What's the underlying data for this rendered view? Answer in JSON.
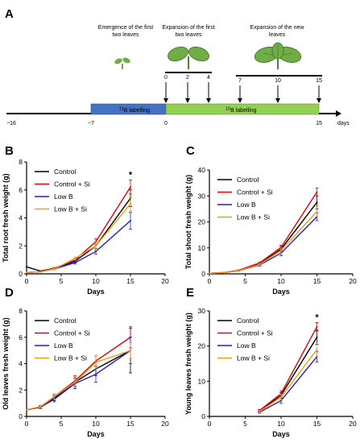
{
  "figure": {
    "panel_a": {
      "letter": "A",
      "stage_labels": [
        "Emergence of the first two leaves",
        "Expansion of the first two leaves",
        "Expansion of the new leaves"
      ],
      "stage_label_lines": [
        [
          "Emergence of the first",
          "two leaves"
        ],
        [
          "Expansion of the first",
          "two leaves"
        ],
        [
          "Expansion of the new",
          "leaves"
        ]
      ],
      "arrow_days": [
        "0",
        "2",
        "4",
        "7",
        "10",
        "15"
      ],
      "timeline_ticks": [
        "−16",
        "−7",
        "0",
        "15"
      ],
      "timeline_unit": "days",
      "label_11b_sup": "11",
      "label_11b_rest": "B labelling",
      "label_10b_sup": "10",
      "label_10b_rest": "B labelling",
      "colors": {
        "b11": "#4472c4",
        "b10": "#92d050",
        "leaf": "#70ad47",
        "leaf_dark": "#548235"
      }
    }
  },
  "legend_labels": [
    "Control",
    "Control + Si",
    "Low B",
    "Low B + Si"
  ],
  "series_colors": {
    "Control": "#000000",
    "Control + Si": "#e8000b",
    "Low B": "#1f1fd6",
    "Low B + Si": "#f39c12"
  },
  "chart_data": [
    {
      "panel": "B",
      "type": "line",
      "xlabel": "Days",
      "ylabel": "Total root fresh weight (g)",
      "xlim": [
        0,
        20
      ],
      "ylim": [
        0,
        8
      ],
      "xticks": [
        0,
        5,
        10,
        15,
        20
      ],
      "yticks": [
        0,
        2,
        4,
        6,
        8
      ],
      "annotation": "*",
      "annotation_x": 15,
      "series": [
        {
          "name": "Control",
          "x": [
            0,
            2,
            4,
            7,
            10,
            15
          ],
          "y": [
            0.5,
            0.2,
            0.4,
            0.9,
            2.0,
            5.4
          ],
          "err": [
            0,
            0,
            0.05,
            0.1,
            0.3,
            0.6
          ]
        },
        {
          "name": "Control + Si",
          "x": [
            0,
            2,
            4,
            7,
            10,
            15
          ],
          "y": [
            0.1,
            0.15,
            0.4,
            1.0,
            2.3,
            6.2
          ],
          "err": [
            0,
            0,
            0.05,
            0.1,
            0.2,
            0.5
          ]
        },
        {
          "name": "Low B",
          "x": [
            0,
            2,
            4,
            7,
            10,
            15
          ],
          "y": [
            0.1,
            0.15,
            0.35,
            0.8,
            1.6,
            3.8
          ],
          "err": [
            0,
            0,
            0.05,
            0.1,
            0.2,
            0.6
          ]
        },
        {
          "name": "Low B + Si",
          "x": [
            0,
            2,
            4,
            7,
            10,
            15
          ],
          "y": [
            0.1,
            0.15,
            0.35,
            1.1,
            2.0,
            5.0
          ],
          "err": [
            0,
            0,
            0.05,
            0.1,
            0.3,
            0.5
          ]
        }
      ]
    },
    {
      "panel": "C",
      "type": "line",
      "xlabel": "Days",
      "ylabel": "Total shoot fresh weight (g)",
      "xlim": [
        0,
        20
      ],
      "ylim": [
        0,
        40
      ],
      "xticks": [
        0,
        5,
        10,
        15,
        20
      ],
      "yticks": [
        0,
        10,
        20,
        30,
        40
      ],
      "series": [
        {
          "name": "Control",
          "x": [
            0,
            2,
            4,
            7,
            10,
            15
          ],
          "y": [
            0.2,
            0.5,
            1.2,
            3.8,
            9.5,
            27.5
          ],
          "err": [
            0,
            0,
            0.2,
            0.4,
            1.0,
            2.5
          ]
        },
        {
          "name": "Control + Si",
          "x": [
            0,
            2,
            4,
            7,
            10,
            15
          ],
          "y": [
            0.2,
            0.5,
            1.3,
            4.2,
            10.2,
            31.5
          ],
          "err": [
            0,
            0,
            0.2,
            0.4,
            0.8,
            1.5
          ]
        },
        {
          "name": "Low B",
          "x": [
            0,
            2,
            4,
            7,
            10,
            15
          ],
          "y": [
            0.2,
            0.5,
            1.1,
            3.4,
            8.0,
            22.0
          ],
          "err": [
            0,
            0,
            0.2,
            0.4,
            1.0,
            1.5
          ]
        },
        {
          "name": "Low B + Si",
          "x": [
            0,
            2,
            4,
            7,
            10,
            15
          ],
          "y": [
            0.2,
            0.5,
            1.1,
            3.6,
            9.0,
            24.0
          ],
          "err": [
            0,
            0,
            0.2,
            0.4,
            1.0,
            2.0
          ]
        }
      ]
    },
    {
      "panel": "D",
      "type": "line",
      "xlabel": "Days",
      "ylabel": "Old leaves fresh weight (g)",
      "xlim": [
        0,
        20
      ],
      "ylim": [
        0,
        8
      ],
      "xticks": [
        0,
        5,
        10,
        15,
        20
      ],
      "yticks": [
        0,
        2,
        4,
        6,
        8
      ],
      "series": [
        {
          "name": "Control",
          "x": [
            0,
            2,
            4,
            7,
            10,
            15
          ],
          "y": [
            0.5,
            0.7,
            1.4,
            2.6,
            3.6,
            5.0
          ],
          "err": [
            0,
            0.1,
            0.2,
            0.4,
            0.5,
            1.7
          ]
        },
        {
          "name": "Control + Si",
          "x": [
            0,
            2,
            4,
            7,
            10,
            15
          ],
          "y": [
            0.5,
            0.7,
            1.5,
            2.7,
            4.2,
            6.0
          ],
          "err": [
            0,
            0.1,
            0.2,
            0.4,
            0.4,
            0.8
          ]
        },
        {
          "name": "Low B",
          "x": [
            0,
            2,
            4,
            7,
            10,
            15
          ],
          "y": [
            0.5,
            0.7,
            1.3,
            2.5,
            3.2,
            5.0
          ],
          "err": [
            0,
            0.1,
            0.2,
            0.4,
            0.6,
            1.0
          ]
        },
        {
          "name": "Low B + Si",
          "x": [
            0,
            2,
            4,
            7,
            10,
            15
          ],
          "y": [
            0.5,
            0.75,
            1.5,
            2.6,
            4.1,
            5.0
          ],
          "err": [
            0,
            0.1,
            0.2,
            0.4,
            0.5,
            0.6
          ]
        }
      ]
    },
    {
      "panel": "E",
      "type": "line",
      "xlabel": "Days",
      "ylabel": "Young leaves fresh weight (g)",
      "xlim": [
        0,
        20
      ],
      "ylim": [
        0,
        30
      ],
      "xticks": [
        0,
        5,
        10,
        15,
        20
      ],
      "yticks": [
        0,
        10,
        20,
        30
      ],
      "annotation": "*",
      "annotation_x": 15,
      "series": [
        {
          "name": "Control",
          "x": [
            7,
            10,
            15
          ],
          "y": [
            1.5,
            6.0,
            22.5
          ],
          "err": [
            0.3,
            0.8,
            2.0
          ]
        },
        {
          "name": "Control + Si",
          "x": [
            7,
            10,
            15
          ],
          "y": [
            1.7,
            6.5,
            25.5
          ],
          "err": [
            0.3,
            0.8,
            1.2
          ]
        },
        {
          "name": "Low B",
          "x": [
            7,
            10,
            15
          ],
          "y": [
            1.2,
            4.5,
            17.0
          ],
          "err": [
            0.3,
            0.8,
            1.5
          ]
        },
        {
          "name": "Low B + Si",
          "x": [
            7,
            10,
            15
          ],
          "y": [
            1.4,
            5.5,
            19.0
          ],
          "err": [
            0.3,
            0.8,
            2.0
          ]
        }
      ]
    }
  ]
}
